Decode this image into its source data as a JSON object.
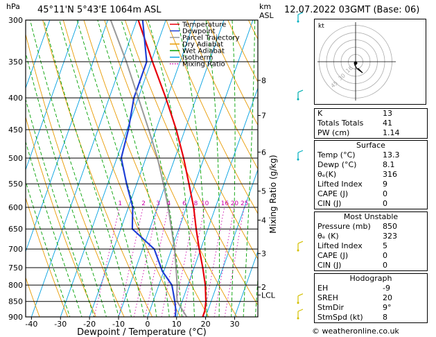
{
  "header": {
    "location": "45°11'N  5°43'E  1064m  ASL",
    "datetime": "12.07.2022  03GMT  (Base: 06)"
  },
  "units": {
    "pressure": "hPa",
    "height": "km\nASL",
    "km": "km",
    "asl": "ASL"
  },
  "legend": [
    {
      "name": "Temperature",
      "color": "#e8000b"
    },
    {
      "name": "Dewpoint",
      "color": "#1f3fd6"
    },
    {
      "name": "Parcel Trajectory",
      "color": "#999999"
    },
    {
      "name": "Dry Adiabat",
      "color": "#e89a00"
    },
    {
      "name": "Wet Adiabat",
      "color": "#00a000"
    },
    {
      "name": "Isotherm",
      "color": "#00a0e0"
    },
    {
      "name": "Mixing Ratio",
      "color": "#cc00aa",
      "dotted": true
    }
  ],
  "chart_data": {
    "type": "line",
    "xlabel": "Dewpoint / Temperature (°C)",
    "ylabel": "hPa",
    "right_label": "Mixing Ratio (g/kg)",
    "pressure_ticks": [
      300,
      350,
      400,
      450,
      500,
      550,
      600,
      650,
      700,
      750,
      800,
      850,
      900
    ],
    "temperature_ticks": [
      -40,
      -30,
      -20,
      -10,
      0,
      10,
      20,
      30
    ],
    "xlim": [
      -42,
      38
    ],
    "plim": [
      300,
      900
    ],
    "km_ticks": [
      {
        "label": "8",
        "p": 375
      },
      {
        "label": "7",
        "p": 427
      },
      {
        "label": "6",
        "p": 489
      },
      {
        "label": "5",
        "p": 565
      },
      {
        "label": "4",
        "p": 629
      },
      {
        "label": "3",
        "p": 712
      },
      {
        "label": "2",
        "p": 806
      },
      {
        "label": "LCL",
        "p": 830
      }
    ],
    "mixing_ratio_labels": [
      "1",
      "2",
      "3",
      "4",
      "6",
      "8",
      "10",
      "16",
      "20",
      "25"
    ],
    "mixing_ratio_values": [
      1,
      2,
      3,
      4,
      6,
      8,
      10,
      16,
      20,
      25
    ],
    "series": [
      {
        "name": "Temperature",
        "color": "#e8000b",
        "points": [
          [
            900,
            19
          ],
          [
            880,
            19
          ],
          [
            850,
            18.2
          ],
          [
            800,
            16
          ],
          [
            750,
            13
          ],
          [
            700,
            9.5
          ],
          [
            650,
            6
          ],
          [
            600,
            2.5
          ],
          [
            550,
            -2
          ],
          [
            500,
            -7
          ],
          [
            450,
            -13
          ],
          [
            400,
            -20.5
          ],
          [
            350,
            -29.5
          ],
          [
            300,
            -39.5
          ]
        ]
      },
      {
        "name": "Dewpoint",
        "color": "#1f3fd6",
        "points": [
          [
            900,
            9.5
          ],
          [
            880,
            9
          ],
          [
            850,
            7.5
          ],
          [
            800,
            4.5
          ],
          [
            760,
            -0.5
          ],
          [
            700,
            -6
          ],
          [
            650,
            -16
          ],
          [
            620,
            -17.5
          ],
          [
            600,
            -18.5
          ],
          [
            550,
            -23.5
          ],
          [
            500,
            -28.5
          ],
          [
            450,
            -29.5
          ],
          [
            400,
            -31.5
          ],
          [
            350,
            -31.5
          ],
          [
            300,
            -38
          ]
        ]
      },
      {
        "name": "Parcel Trajectory",
        "color": "#999999",
        "points": [
          [
            900,
            13.5
          ],
          [
            850,
            8.3
          ],
          [
            830,
            7.4
          ],
          [
            800,
            6.3
          ],
          [
            750,
            3.8
          ],
          [
            700,
            1
          ],
          [
            650,
            -2.5
          ],
          [
            600,
            -6.3
          ],
          [
            550,
            -10.8
          ],
          [
            500,
            -16
          ],
          [
            450,
            -22.5
          ],
          [
            400,
            -30
          ],
          [
            350,
            -38.5
          ],
          [
            300,
            -49
          ]
        ]
      }
    ],
    "wind_barbs": [
      {
        "p": 300,
        "color": "#00b0c0"
      },
      {
        "p": 400,
        "color": "#00b0b0"
      },
      {
        "p": 500,
        "color": "#00b0c0"
      },
      {
        "p": 700,
        "color": "#d4c000"
      },
      {
        "p": 850,
        "color": "#d4c000"
      },
      {
        "p": 900,
        "color": "#d4c000"
      }
    ]
  },
  "hodograph": {
    "label": "kt",
    "ring_labels": [
      "16",
      "30",
      "45"
    ],
    "trace": [
      [
        0,
        0
      ],
      [
        -0.3,
        -1.1
      ],
      [
        0.6,
        -2.5
      ],
      [
        2.4,
        -3.8
      ],
      [
        0.8,
        -2.2
      ]
    ]
  },
  "indices": [
    {
      "label": "K",
      "value": "13"
    },
    {
      "label": "Totals Totals",
      "value": "41"
    },
    {
      "label": "PW (cm)",
      "value": "1.14"
    }
  ],
  "surface": {
    "title": "Surface",
    "rows": [
      {
        "label": "Temp (°C)",
        "value": "13.3"
      },
      {
        "label": "Dewp (°C)",
        "value": "8.1"
      },
      {
        "label": "θₑ(K)",
        "value": "316"
      },
      {
        "label": "Lifted Index",
        "value": "9"
      },
      {
        "label": "CAPE (J)",
        "value": "0"
      },
      {
        "label": "CIN (J)",
        "value": "0"
      }
    ]
  },
  "most_unstable": {
    "title": "Most Unstable",
    "rows": [
      {
        "label": "Pressure (mb)",
        "value": "850"
      },
      {
        "label": "θₑ (K)",
        "value": "323"
      },
      {
        "label": "Lifted Index",
        "value": "5"
      },
      {
        "label": "CAPE (J)",
        "value": "0"
      },
      {
        "label": "CIN (J)",
        "value": "0"
      }
    ]
  },
  "hodograph_table": {
    "title": "Hodograph",
    "rows": [
      {
        "label": "EH",
        "value": "-9"
      },
      {
        "label": "SREH",
        "value": "20"
      },
      {
        "label": "StmDir",
        "value": "9°"
      },
      {
        "label": "StmSpd (kt)",
        "value": "8"
      }
    ]
  },
  "footer": "© weatheronline.co.uk"
}
